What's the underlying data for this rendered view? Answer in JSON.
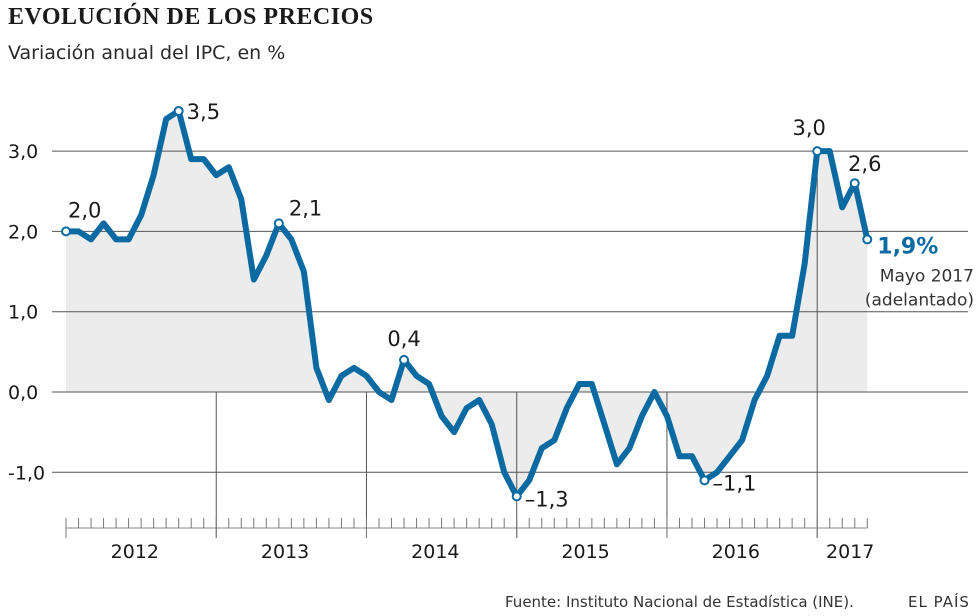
{
  "title": "EVOLUCIÓN DE LOS PRECIOS",
  "subtitle": "Variación anual del IPC, en %",
  "footer": {
    "source": "Fuente: Instituto Nacional de Estadística (INE).",
    "brand": "EL PAÍS"
  },
  "colors": {
    "line": "#0b6aa2",
    "area": "#ececec",
    "grid": "#555555",
    "text": "#1a1a1a"
  },
  "chart_data": {
    "type": "area",
    "title": "EVOLUCIÓN DE LOS PRECIOS",
    "subtitle": "Variación anual del IPC, en %",
    "ylabel": "Variación anual del IPC, en %",
    "xlabel": "",
    "ylim": [
      -1.6,
      3.8
    ],
    "y_ticks": [
      3.0,
      2.0,
      1.0,
      0.0,
      -1.0
    ],
    "y_tick_labels": [
      "3,0",
      "2,0",
      "1,0",
      "0,0",
      "-1,0"
    ],
    "x_tick_labels": [
      "2012",
      "2013",
      "2014",
      "2015",
      "2016",
      "2017"
    ],
    "start": "2012-01",
    "series": [
      {
        "name": "IPC",
        "values": [
          2.0,
          2.0,
          1.9,
          2.1,
          1.9,
          1.9,
          2.2,
          2.7,
          3.4,
          3.5,
          2.9,
          2.9,
          2.7,
          2.8,
          2.4,
          1.4,
          1.7,
          2.1,
          1.9,
          1.5,
          0.3,
          -0.1,
          0.2,
          0.3,
          0.2,
          0.0,
          -0.1,
          0.4,
          0.2,
          0.1,
          -0.3,
          -0.5,
          -0.2,
          -0.1,
          -0.4,
          -1.0,
          -1.3,
          -1.1,
          -0.7,
          -0.6,
          -0.2,
          0.1,
          0.1,
          -0.4,
          -0.9,
          -0.7,
          -0.3,
          0.0,
          -0.3,
          -0.8,
          -0.8,
          -1.1,
          -1.0,
          -0.8,
          -0.6,
          -0.1,
          0.2,
          0.7,
          0.7,
          1.6,
          3.0,
          3.0,
          2.3,
          2.6,
          1.9
        ]
      }
    ],
    "annotations": [
      {
        "index": 0,
        "label": "2,0"
      },
      {
        "index": 9,
        "label": "3,5"
      },
      {
        "index": 17,
        "label": "2,1"
      },
      {
        "index": 27,
        "label": "0,4"
      },
      {
        "index": 36,
        "label": "–1,3"
      },
      {
        "index": 51,
        "label": "–1,1"
      },
      {
        "index": 60,
        "label": "3,0"
      },
      {
        "index": 63,
        "label": "2,6"
      },
      {
        "index": 64,
        "label": "1,9%"
      }
    ],
    "last_point_note": [
      "Mayo 2017",
      "(adelantado)"
    ]
  }
}
